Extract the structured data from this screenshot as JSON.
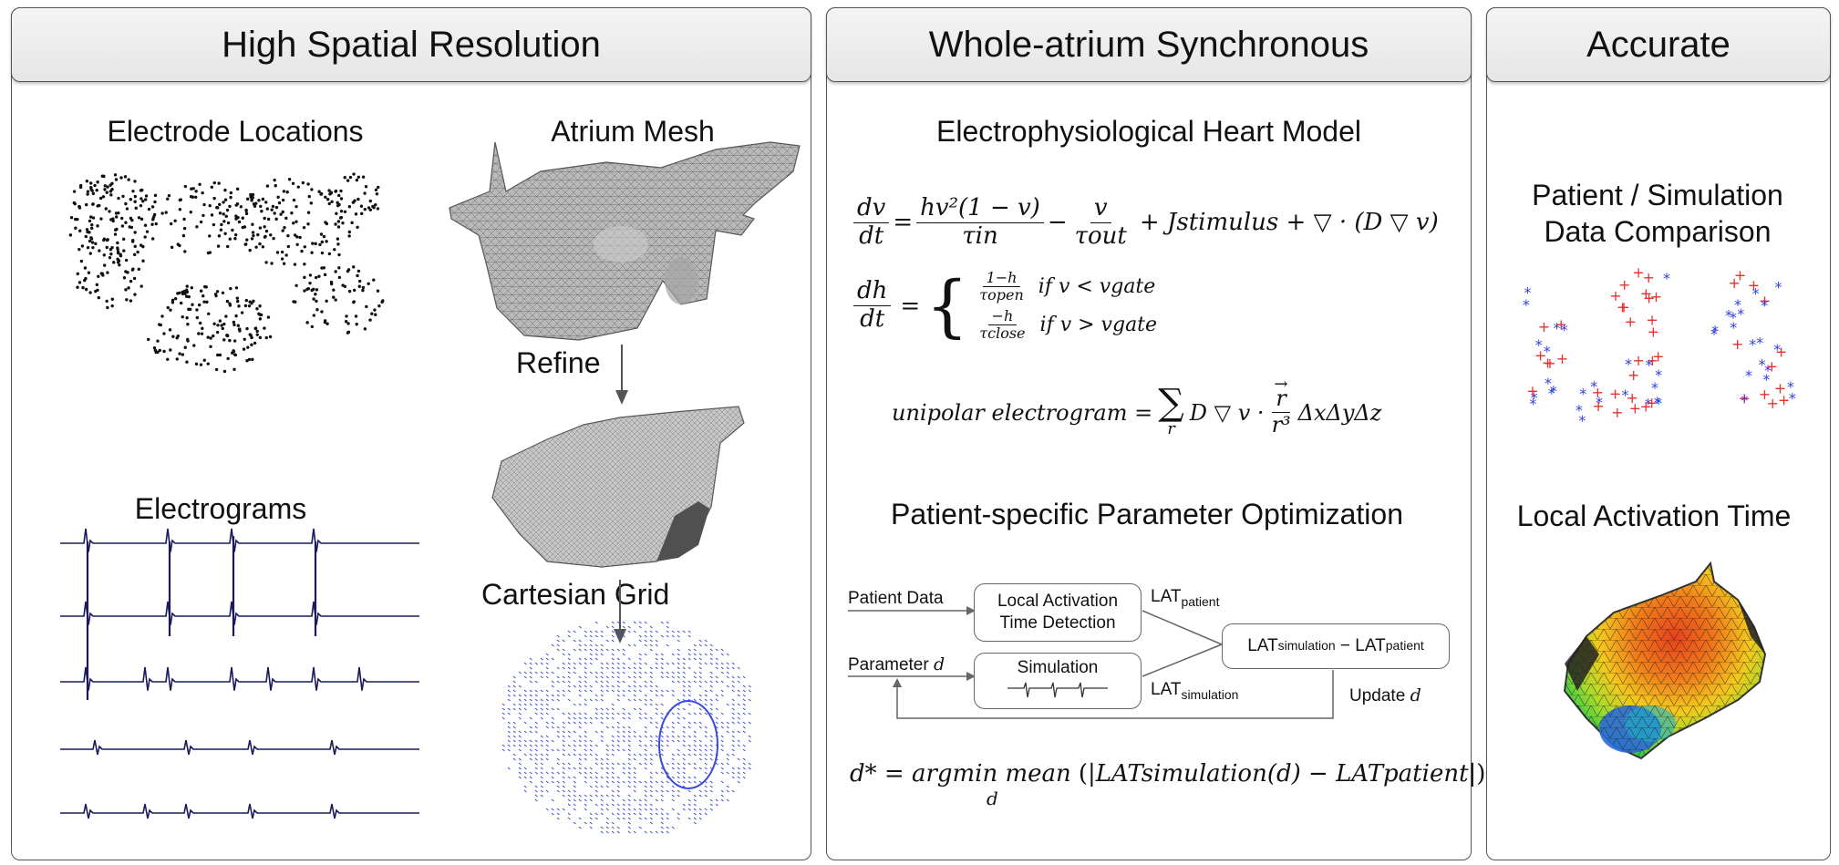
{
  "panels": [
    {
      "title": "High Spatial Resolution"
    },
    {
      "title": "Whole-atrium Synchronous"
    },
    {
      "title": "Accurate"
    }
  ],
  "left": {
    "electrode_locations": "Electrode Locations",
    "atrium_mesh": "Atrium Mesh",
    "refine": "Refine",
    "electrograms": "Electrograms",
    "cartesian_grid": "Cartesian Grid"
  },
  "middle": {
    "model_title": "Electrophysiological Heart Model",
    "optimization_title": "Patient-specific Parameter Optimization",
    "eq1": {
      "lhs_num": "dv",
      "lhs_den": "dt",
      "t1_num": "hv²(1 − v)",
      "t1_den": "τin",
      "t2_num": "v",
      "t2_den": "τout",
      "rest": "+ Jstimulus + ▽ · (D ▽ v)"
    },
    "eq2": {
      "lhs_num": "dh",
      "lhs_den": "dt",
      "c1_num": "1−h",
      "c1_den": "τopen",
      "c1_cond": "if  v < vgate",
      "c2_num": "−h",
      "c2_den": "τclose",
      "c2_cond": "if  v > vgate"
    },
    "eq3": {
      "lhs": "unipolar electrogram =",
      "sum_sub": "r",
      "mid": "D ▽ v ·",
      "vec": "r",
      "den": "r³",
      "tail": "ΔxΔyΔz"
    },
    "flow": {
      "patient_data": "Patient Data",
      "lat_detection_1": "Local Activation",
      "lat_detection_2": "Time Detection",
      "lat_patient": "LAT",
      "lat_patient_sub": "patient",
      "parameter": "Parameter",
      "parameter_var": "d",
      "simulation": "Simulation",
      "lat_simulation": "LAT",
      "lat_simulation_sub": "simulation",
      "diff_a": "LAT",
      "diff_a_sub": "simulation",
      "diff_minus": " − LAT",
      "diff_b_sub": "patient",
      "update": "Update",
      "update_var": "d"
    },
    "eq4": {
      "lhs": "d* = argmin mean",
      "sub": "d",
      "arg": "LATsimulation(d) − LATpatient"
    }
  },
  "right": {
    "comparison_1": "Patient / Simulation",
    "comparison_2": "Data Comparison",
    "lat_title": "Local Activation Time"
  },
  "colors": {
    "patient_marker": "#e8312f",
    "simulation_marker": "#2f3fe0",
    "grid": "#3b4bd8",
    "trace": "#1a1a5a"
  }
}
